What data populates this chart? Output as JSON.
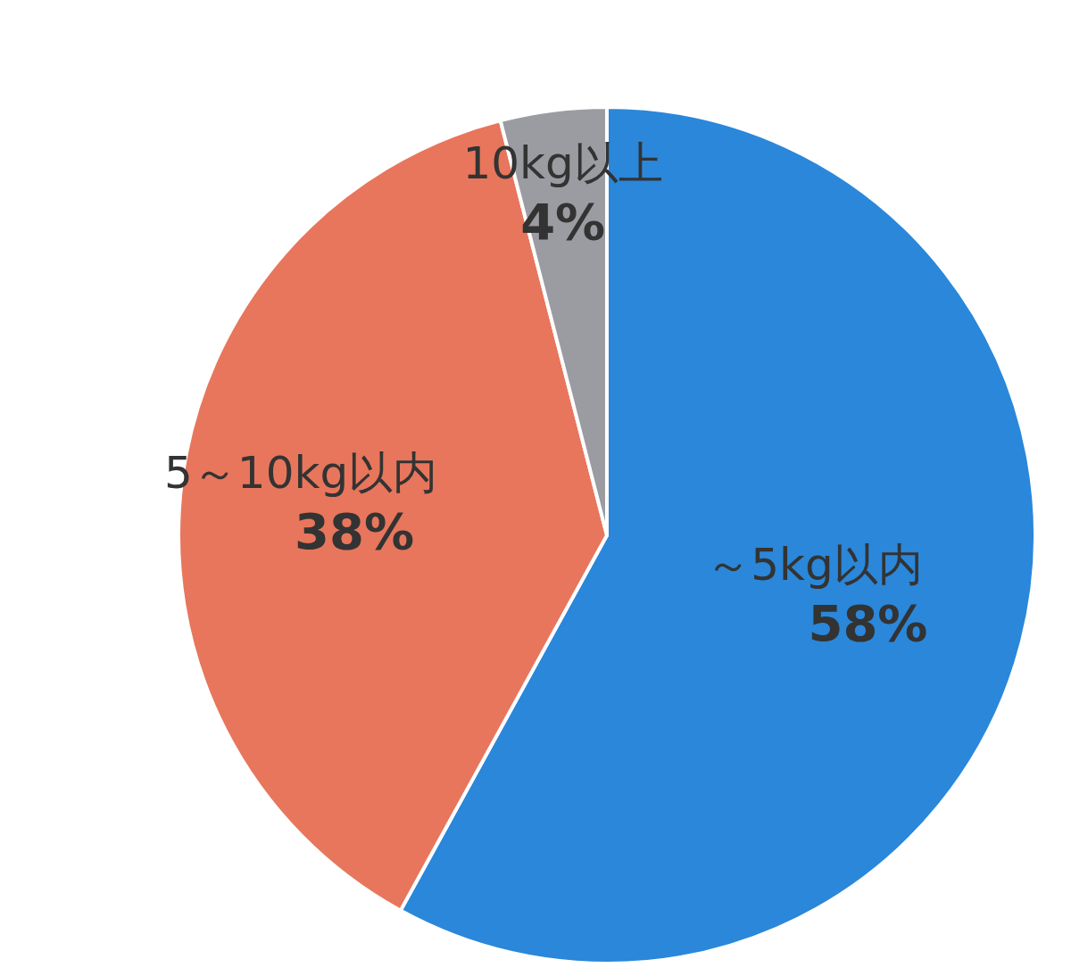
{
  "chart_data": {
    "type": "pie",
    "categories": [
      "～5kg以内",
      "5～10kg以内",
      "10kg以上"
    ],
    "values": [
      58,
      38,
      4
    ],
    "colors": [
      "#2a87da",
      "#e8765c",
      "#9b9ca2"
    ],
    "value_labels": [
      "58%",
      "38%",
      "4%"
    ]
  }
}
